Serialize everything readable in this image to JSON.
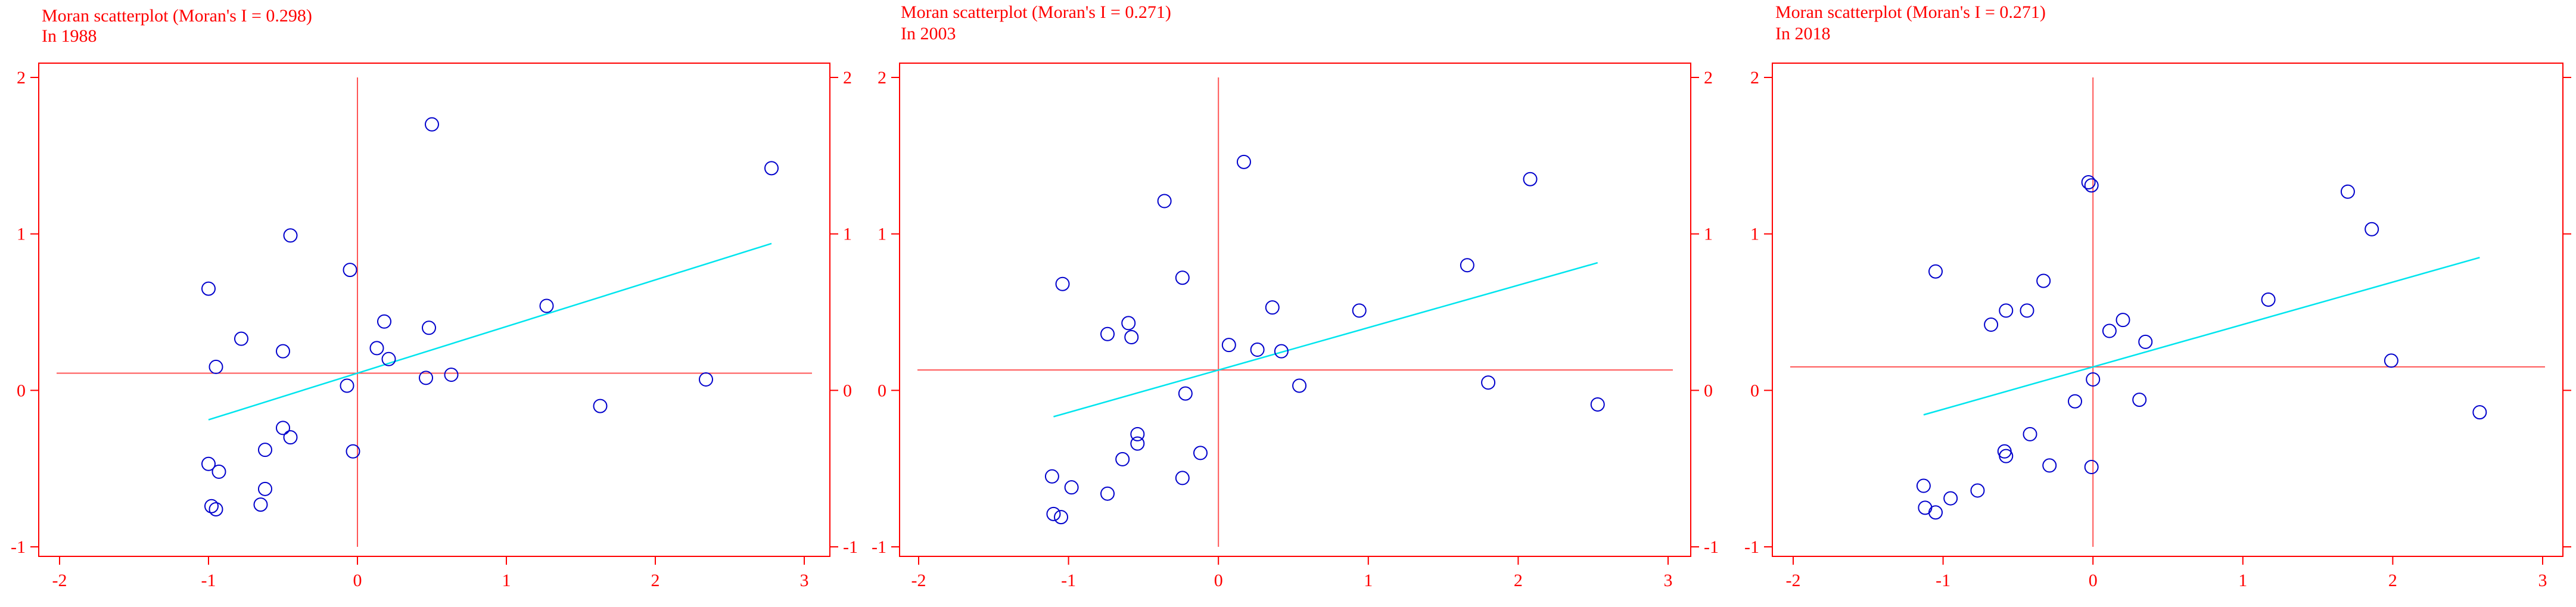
{
  "chart_data": [
    {
      "type": "scatter",
      "title": "Moran scatterplot (Moran's I = 0.298)",
      "subtitle": "In 1988",
      "xlabel": "",
      "ylabel": "",
      "xlim": [
        -2,
        3
      ],
      "ylim": [
        -1,
        2
      ],
      "xticks": [
        -2,
        -1,
        0,
        1,
        2,
        3
      ],
      "yticks": [
        -1,
        0,
        1,
        2
      ],
      "grid": false,
      "mean_x": 0.0,
      "mean_y": 0.11,
      "regression": {
        "slope": 0.298,
        "intercept": 0.11,
        "x_range": [
          -1,
          2.78
        ]
      },
      "colors": {
        "frame": "#ff0000",
        "mean_lines": "#ff5555",
        "points": "#0000cc",
        "regression": "#00e5ee"
      },
      "points": [
        {
          "x": -1.0,
          "y": 0.65
        },
        {
          "x": -0.95,
          "y": 0.15
        },
        {
          "x": -0.78,
          "y": 0.33
        },
        {
          "x": -0.5,
          "y": 0.25
        },
        {
          "x": -0.45,
          "y": 0.99
        },
        {
          "x": -0.05,
          "y": 0.77
        },
        {
          "x": 0.5,
          "y": 1.7
        },
        {
          "x": 0.18,
          "y": 0.44
        },
        {
          "x": 0.48,
          "y": 0.4
        },
        {
          "x": 0.13,
          "y": 0.27
        },
        {
          "x": 0.21,
          "y": 0.2
        },
        {
          "x": 1.27,
          "y": 0.54
        },
        {
          "x": 2.78,
          "y": 1.42
        },
        {
          "x": 0.46,
          "y": 0.08
        },
        {
          "x": 0.63,
          "y": 0.1
        },
        {
          "x": -0.07,
          "y": 0.03
        },
        {
          "x": 2.34,
          "y": 0.07
        },
        {
          "x": 1.63,
          "y": -0.1
        },
        {
          "x": -0.5,
          "y": -0.24
        },
        {
          "x": -0.45,
          "y": -0.3
        },
        {
          "x": -0.62,
          "y": -0.38
        },
        {
          "x": -0.03,
          "y": -0.39
        },
        {
          "x": -1.0,
          "y": -0.47
        },
        {
          "x": -0.93,
          "y": -0.52
        },
        {
          "x": -0.62,
          "y": -0.63
        },
        {
          "x": -0.65,
          "y": -0.73
        },
        {
          "x": -0.98,
          "y": -0.74
        },
        {
          "x": -0.95,
          "y": -0.76
        }
      ]
    },
    {
      "type": "scatter",
      "title": "Moran scatterplot (Moran's I = 0.271)",
      "subtitle": "In 2003",
      "xlabel": "",
      "ylabel": "",
      "xlim": [
        -2,
        3
      ],
      "ylim": [
        -1,
        2
      ],
      "xticks": [
        -2,
        -1,
        0,
        1,
        2,
        3
      ],
      "yticks": [
        -1,
        0,
        1,
        2
      ],
      "grid": false,
      "mean_x": 0.0,
      "mean_y": 0.13,
      "regression": {
        "slope": 0.271,
        "intercept": 0.13,
        "x_range": [
          -1.1,
          2.53
        ]
      },
      "colors": {
        "frame": "#ff0000",
        "mean_lines": "#ff5555",
        "points": "#0000cc",
        "regression": "#00e5ee"
      },
      "points": [
        {
          "x": 0.17,
          "y": 1.46
        },
        {
          "x": -0.36,
          "y": 1.21
        },
        {
          "x": 2.08,
          "y": 1.35
        },
        {
          "x": -0.24,
          "y": 0.72
        },
        {
          "x": 1.66,
          "y": 0.8
        },
        {
          "x": -1.04,
          "y": 0.68
        },
        {
          "x": 0.36,
          "y": 0.53
        },
        {
          "x": 0.94,
          "y": 0.51
        },
        {
          "x": -0.6,
          "y": 0.43
        },
        {
          "x": -0.74,
          "y": 0.36
        },
        {
          "x": -0.58,
          "y": 0.34
        },
        {
          "x": 0.07,
          "y": 0.29
        },
        {
          "x": 0.26,
          "y": 0.26
        },
        {
          "x": 0.42,
          "y": 0.25
        },
        {
          "x": 1.8,
          "y": 0.05
        },
        {
          "x": 0.54,
          "y": 0.03
        },
        {
          "x": -0.22,
          "y": -0.02
        },
        {
          "x": 2.53,
          "y": -0.09
        },
        {
          "x": -0.54,
          "y": -0.28
        },
        {
          "x": -0.54,
          "y": -0.34
        },
        {
          "x": -0.12,
          "y": -0.4
        },
        {
          "x": -0.64,
          "y": -0.44
        },
        {
          "x": -1.11,
          "y": -0.55
        },
        {
          "x": -0.24,
          "y": -0.56
        },
        {
          "x": -0.98,
          "y": -0.62
        },
        {
          "x": -0.74,
          "y": -0.66
        },
        {
          "x": -1.1,
          "y": -0.79
        },
        {
          "x": -1.05,
          "y": -0.81
        }
      ]
    },
    {
      "type": "scatter",
      "title": "Moran scatterplot (Moran's I = 0.271)",
      "subtitle": "In 2018",
      "xlabel": "",
      "ylabel": "",
      "xlim": [
        -2,
        3
      ],
      "ylim": [
        -1,
        2
      ],
      "xticks": [
        -2,
        -1,
        0,
        1,
        2,
        3
      ],
      "yticks": [
        -1,
        0,
        1,
        2
      ],
      "grid": false,
      "mean_x": 0.0,
      "mean_y": 0.15,
      "regression": {
        "slope": 0.271,
        "intercept": 0.15,
        "x_range": [
          -1.13,
          2.58
        ]
      },
      "colors": {
        "frame": "#ff0000",
        "mean_lines": "#ff5555",
        "points": "#0000cc",
        "regression": "#00e5ee"
      },
      "points": [
        {
          "x": -0.03,
          "y": 1.33
        },
        {
          "x": -0.01,
          "y": 1.31
        },
        {
          "x": 1.7,
          "y": 1.27
        },
        {
          "x": 1.86,
          "y": 1.03
        },
        {
          "x": -1.05,
          "y": 0.76
        },
        {
          "x": -0.33,
          "y": 0.7
        },
        {
          "x": 1.17,
          "y": 0.58
        },
        {
          "x": -0.58,
          "y": 0.51
        },
        {
          "x": -0.44,
          "y": 0.51
        },
        {
          "x": 0.2,
          "y": 0.45
        },
        {
          "x": -0.68,
          "y": 0.42
        },
        {
          "x": 0.11,
          "y": 0.38
        },
        {
          "x": 0.35,
          "y": 0.31
        },
        {
          "x": 1.99,
          "y": 0.19
        },
        {
          "x": 0.0,
          "y": 0.07
        },
        {
          "x": -0.12,
          "y": -0.07
        },
        {
          "x": 0.31,
          "y": -0.06
        },
        {
          "x": 2.58,
          "y": -0.14
        },
        {
          "x": -0.42,
          "y": -0.28
        },
        {
          "x": -0.59,
          "y": -0.39
        },
        {
          "x": -0.58,
          "y": -0.42
        },
        {
          "x": -0.29,
          "y": -0.48
        },
        {
          "x": -0.01,
          "y": -0.49
        },
        {
          "x": -1.13,
          "y": -0.61
        },
        {
          "x": -0.77,
          "y": -0.64
        },
        {
          "x": -0.95,
          "y": -0.69
        },
        {
          "x": -1.12,
          "y": -0.75
        },
        {
          "x": -1.05,
          "y": -0.78
        }
      ]
    }
  ]
}
